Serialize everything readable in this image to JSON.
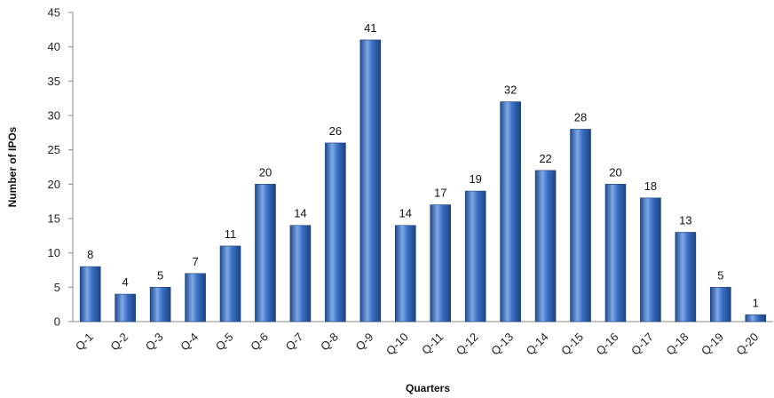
{
  "chart_data": {
    "type": "bar",
    "title": "",
    "xlabel": "Quarters",
    "ylabel": "Number of IPOs",
    "categories": [
      "Q-1",
      "Q-2",
      "Q-3",
      "Q-4",
      "Q-5",
      "Q-6",
      "Q-7",
      "Q-8",
      "Q-9",
      "Q-10",
      "Q-11",
      "Q-12",
      "Q-13",
      "Q-14",
      "Q-15",
      "Q-16",
      "Q-17",
      "Q-18",
      "Q-19",
      "Q-20"
    ],
    "values": [
      8,
      4,
      5,
      7,
      11,
      20,
      14,
      26,
      41,
      14,
      17,
      19,
      32,
      22,
      28,
      20,
      18,
      13,
      5,
      1
    ],
    "ylim": [
      0,
      45
    ],
    "yticks": [
      0,
      5,
      10,
      15,
      20,
      25,
      30,
      35,
      40,
      45
    ],
    "grid": false,
    "data_labels": true,
    "colors": {
      "bar": "#3a6fc4",
      "bar_dark": "#1f4a8f",
      "bar_light": "#7fa8e6"
    }
  }
}
